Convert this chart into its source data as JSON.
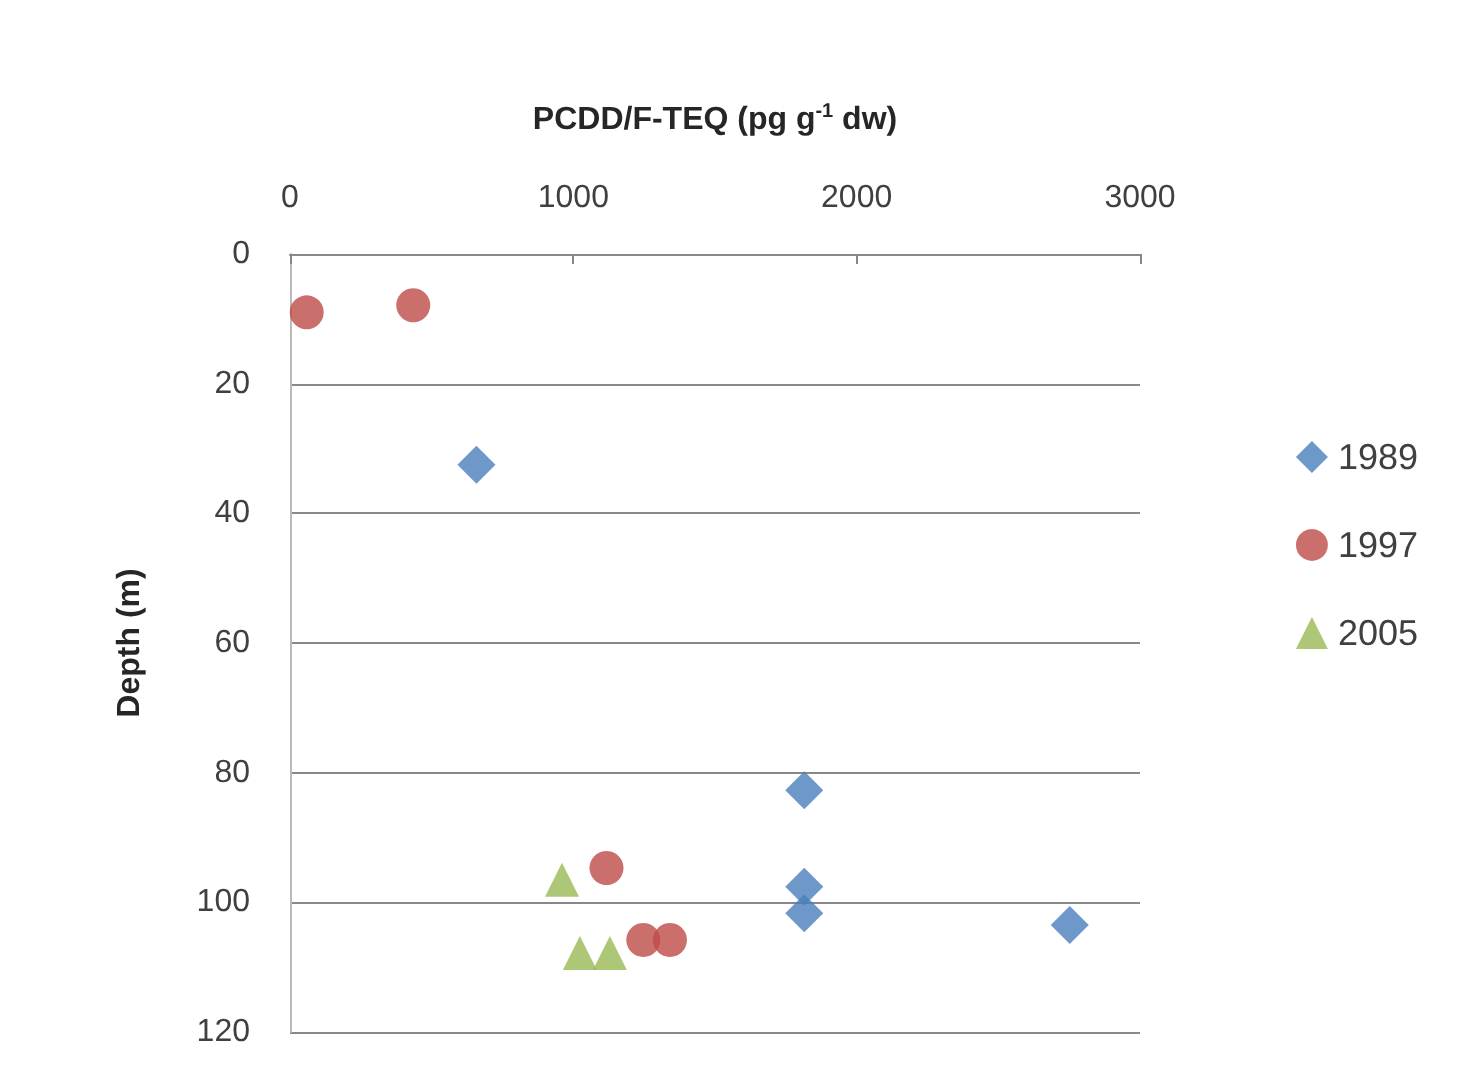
{
  "chart_data": {
    "type": "scatter",
    "xlabel": "PCDD/F-TEQ (pg g$^{-1}$ dw)",
    "ylabel": "Depth (m)",
    "xlim": [
      0,
      3000
    ],
    "xticks": [
      0,
      1000,
      2000,
      3000
    ],
    "ylim": [
      120,
      0
    ],
    "yticks": [
      0,
      20,
      40,
      60,
      80,
      100,
      120
    ],
    "grid": "y",
    "legend": "right",
    "series": [
      {
        "name": "1989",
        "color": "#4a7ebb",
        "marker": "diamond",
        "x": [
          658,
          1815,
          1815,
          1815,
          2752
        ],
        "values": [
          32.5,
          82.7,
          97.6,
          101.7,
          103.5
        ]
      },
      {
        "name": "1997",
        "color": "#be4b48",
        "marker": "circle",
        "x": [
          59,
          435,
          1117,
          1247,
          1341
        ],
        "values": [
          9.0,
          7.9,
          94.7,
          105.8,
          105.8
        ]
      },
      {
        "name": "2005",
        "color": "#98b954",
        "marker": "triangle",
        "x": [
          960,
          1023,
          1129
        ],
        "values": [
          96.5,
          107.8,
          107.8
        ]
      }
    ]
  }
}
